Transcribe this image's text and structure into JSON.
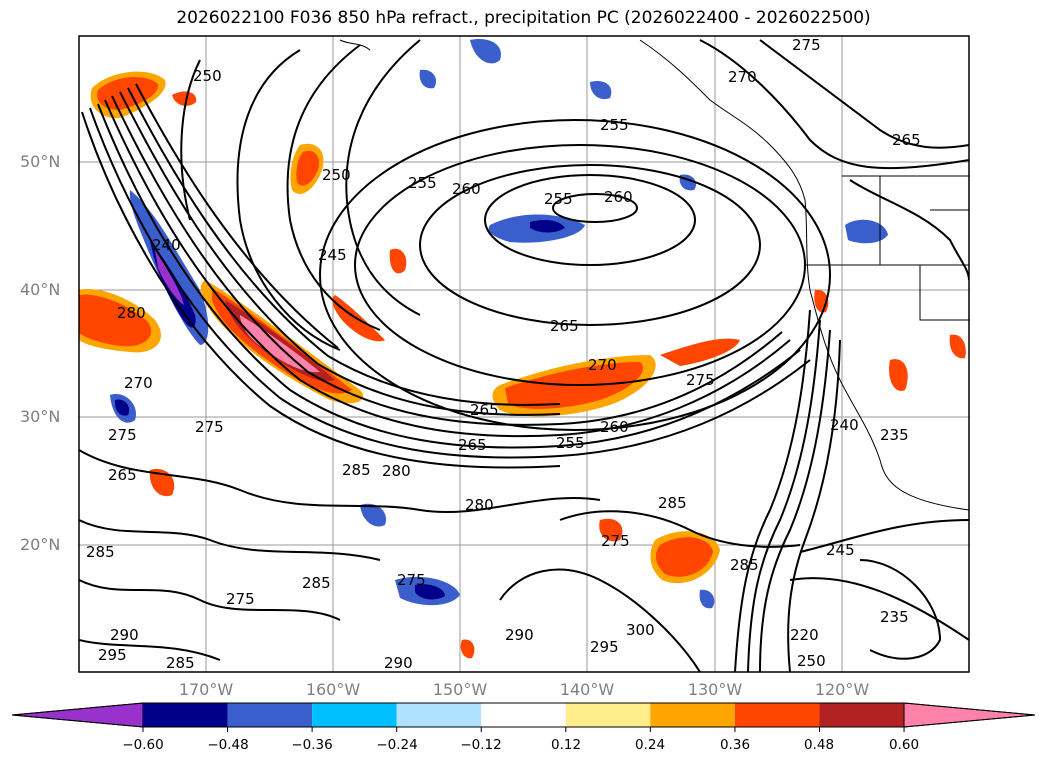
{
  "title": "2026022100 F036 850 hPa refract., precipitation PC (2026022400 - 2026022500)",
  "latitude_labels": [
    "50°N",
    "40°N",
    "30°N",
    "20°N"
  ],
  "longitude_labels": [
    "170°W",
    "160°W",
    "150°W",
    "140°W",
    "130°W",
    "120°W"
  ],
  "colorbar": {
    "colors": [
      "#9932cc",
      "#00008b",
      "#3a5fcd",
      "#00bfff",
      "#b0e2ff",
      "#ffffff",
      "#ffec8b",
      "#ffa500",
      "#ff4500",
      "#b22222",
      "#ff82ab"
    ],
    "tick_labels": [
      "−0.60",
      "−0.48",
      "−0.36",
      "−0.24",
      "−0.12",
      "0.12",
      "0.24",
      "0.36",
      "0.48",
      "0.60"
    ]
  },
  "contour_labels": [
    {
      "text": "250"
    },
    {
      "text": "270"
    },
    {
      "text": "275"
    },
    {
      "text": "255"
    },
    {
      "text": "265"
    },
    {
      "text": "250"
    },
    {
      "text": "255"
    },
    {
      "text": "260"
    },
    {
      "text": "255"
    },
    {
      "text": "260"
    },
    {
      "text": "245"
    },
    {
      "text": "240"
    },
    {
      "text": "280"
    },
    {
      "text": "265"
    },
    {
      "text": "270"
    },
    {
      "text": "275"
    },
    {
      "text": "270"
    },
    {
      "text": "275"
    },
    {
      "text": "265"
    },
    {
      "text": "265"
    },
    {
      "text": "260"
    },
    {
      "text": "255"
    },
    {
      "text": "240"
    },
    {
      "text": "235"
    },
    {
      "text": "280"
    },
    {
      "text": "285"
    },
    {
      "text": "285"
    },
    {
      "text": "280"
    },
    {
      "text": "265"
    },
    {
      "text": "275"
    },
    {
      "text": "285"
    },
    {
      "text": "275"
    },
    {
      "text": "245"
    },
    {
      "text": "285"
    },
    {
      "text": "285"
    },
    {
      "text": "275"
    },
    {
      "text": "275"
    },
    {
      "text": "290"
    },
    {
      "text": "300"
    },
    {
      "text": "295"
    },
    {
      "text": "235"
    },
    {
      "text": "290"
    },
    {
      "text": "295"
    },
    {
      "text": "285"
    },
    {
      "text": "290"
    },
    {
      "text": "220"
    },
    {
      "text": "250"
    }
  ]
}
